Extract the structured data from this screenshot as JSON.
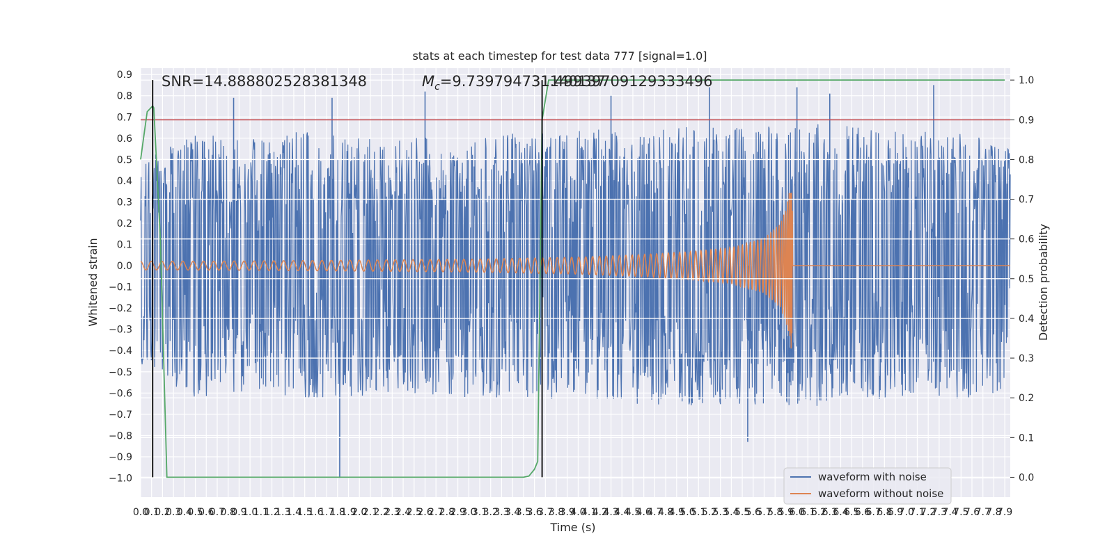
{
  "chart_data": {
    "type": "line",
    "title": "stats at each timestep for test data 777 [signal=1.0]",
    "xlabel": "Time (s)",
    "ylabel": "Whitened strain",
    "ylabel_right": "Detection probability",
    "xlim": [
      0.0,
      7.95
    ],
    "ylim": [
      -1.09,
      0.93
    ],
    "ylim_right": [
      -0.05,
      1.03
    ],
    "grid": true,
    "legend_position": "lower-right",
    "x_ticks": [
      0.0,
      0.1,
      0.2,
      0.3,
      0.4,
      0.5,
      0.6,
      0.7,
      0.8,
      0.9,
      1.0,
      1.1,
      1.2,
      1.3,
      1.4,
      1.5,
      1.6,
      1.7,
      1.8,
      1.9,
      2.0,
      2.1,
      2.2,
      2.3,
      2.4,
      2.5,
      2.6,
      2.7,
      2.8,
      2.9,
      3.0,
      3.1,
      3.2,
      3.3,
      3.4,
      3.5,
      3.6,
      3.7,
      3.8,
      3.9,
      4.0,
      4.1,
      4.2,
      4.3,
      4.4,
      4.5,
      4.6,
      4.7,
      4.8,
      4.9,
      5.0,
      5.1,
      5.2,
      5.3,
      5.4,
      5.5,
      5.6,
      5.7,
      5.8,
      5.9,
      6.0,
      6.1,
      6.2,
      6.3,
      6.4,
      6.5,
      6.6,
      6.7,
      6.8,
      6.9,
      7.0,
      7.1,
      7.2,
      7.3,
      7.4,
      7.5,
      7.6,
      7.7,
      7.8,
      7.9
    ],
    "y_ticks": [
      -1.0,
      -0.9,
      -0.8,
      -0.7,
      -0.6,
      -0.5,
      -0.4,
      -0.3,
      -0.2,
      -0.1,
      0.0,
      0.1,
      0.2,
      0.3,
      0.4,
      0.5,
      0.6,
      0.7,
      0.8,
      0.9
    ],
    "y_ticks_right": [
      0.0,
      0.1,
      0.2,
      0.3,
      0.4,
      0.5,
      0.6,
      0.7,
      0.8,
      0.9,
      1.0
    ],
    "annotations": {
      "snr": "SNR=14.888802528381348",
      "mc_symbol": "M",
      "mc_subscript": "c",
      "mc_value": "=9.739794731140137",
      "overlap": "31.49939709129333496"
    },
    "threshold": {
      "value": 0.9,
      "color": "#c44e52"
    },
    "vlines": [
      0.11,
      3.67
    ],
    "series": [
      {
        "name": "waveform with noise",
        "color": "#4c72b0",
        "envelope_x": [
          0.0,
          0.5,
          1.0,
          1.5,
          2.0,
          2.5,
          3.0,
          3.5,
          4.0,
          4.5,
          5.0,
          5.5,
          6.0,
          6.5,
          7.0,
          7.5,
          7.95
        ],
        "envelope_upper": [
          0.5,
          0.62,
          0.6,
          0.64,
          0.62,
          0.6,
          0.62,
          0.63,
          0.65,
          0.63,
          0.66,
          0.65,
          0.67,
          0.66,
          0.63,
          0.64,
          0.55
        ],
        "envelope_lower": [
          -0.5,
          -0.62,
          -0.6,
          -0.63,
          -0.62,
          -0.6,
          -0.63,
          -0.62,
          -0.64,
          -0.65,
          -0.66,
          -0.65,
          -0.67,
          -0.65,
          -0.63,
          -0.64,
          -0.58
        ],
        "peaks_x": [
          0.85,
          1.75,
          2.6,
          4.3,
          5.2,
          6.0,
          6.3,
          7.25,
          1.82,
          5.55
        ],
        "peaks_y": [
          0.79,
          0.79,
          0.82,
          0.8,
          0.84,
          0.84,
          0.81,
          0.85,
          -1.0,
          -0.83
        ]
      },
      {
        "name": "waveform without noise",
        "color": "#dd8452",
        "amplitude_x": [
          0.0,
          1.0,
          2.0,
          3.0,
          4.0,
          4.5,
          5.0,
          5.4,
          5.7,
          5.85,
          5.9,
          5.95,
          6.0,
          7.95
        ],
        "amplitude": [
          0.02,
          0.022,
          0.026,
          0.03,
          0.04,
          0.05,
          0.065,
          0.085,
          0.13,
          0.2,
          0.27,
          0.4,
          0.0,
          0.0
        ],
        "merger_x": 5.96
      },
      {
        "name": "detection probability",
        "axis": "right",
        "color": "#55a868",
        "x": [
          0.0,
          0.02,
          0.06,
          0.11,
          0.12,
          0.18,
          0.24,
          0.3,
          1.0,
          2.0,
          3.0,
          3.5,
          3.55,
          3.6,
          3.63,
          3.67,
          3.73,
          3.8,
          7.9
        ],
        "y": [
          0.8,
          0.84,
          0.92,
          0.935,
          0.93,
          0.6,
          0.0,
          0.0,
          0.0,
          0.0,
          0.0,
          0.0,
          0.003,
          0.02,
          0.04,
          0.9,
          1.0,
          1.0,
          1.0
        ]
      }
    ]
  }
}
